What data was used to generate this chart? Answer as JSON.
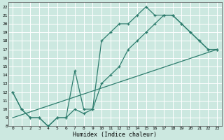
{
  "xlabel": "Humidex (Indice chaleur)",
  "xlim": [
    -0.5,
    23.5
  ],
  "ylim": [
    8,
    22.5
  ],
  "xticks": [
    0,
    1,
    2,
    3,
    4,
    5,
    6,
    7,
    8,
    9,
    10,
    11,
    12,
    13,
    14,
    15,
    16,
    17,
    18,
    19,
    20,
    21,
    22,
    23
  ],
  "yticks": [
    8,
    9,
    10,
    11,
    12,
    13,
    14,
    15,
    16,
    17,
    18,
    19,
    20,
    21,
    22
  ],
  "bg_color": "#cce8e0",
  "line_color": "#2e7d6e",
  "grid_color": "#ffffff",
  "line1_x": [
    0,
    1,
    2,
    3,
    4,
    5,
    6,
    7,
    8,
    9,
    10,
    11,
    12,
    13,
    14,
    15,
    16,
    17,
    18,
    19,
    20,
    21,
    22,
    23
  ],
  "line1_y": [
    12,
    10,
    9,
    9,
    8,
    9,
    9,
    10,
    9.5,
    10,
    18,
    19,
    20,
    20,
    21,
    22,
    21,
    21,
    21,
    20,
    19,
    18,
    17,
    17
  ],
  "line2_x": [
    0,
    1,
    2,
    3,
    4,
    5,
    6,
    7,
    8,
    9,
    10,
    11,
    12,
    13,
    14,
    15,
    16,
    17,
    18,
    19,
    20,
    21,
    22,
    23
  ],
  "line2_y": [
    12,
    10,
    9,
    9,
    8,
    9,
    9,
    14.5,
    10,
    10,
    13,
    14,
    15,
    17,
    18,
    19,
    20,
    21,
    21,
    20,
    19,
    18,
    17,
    17
  ],
  "line3_x": [
    0,
    23
  ],
  "line3_y": [
    9,
    17
  ]
}
